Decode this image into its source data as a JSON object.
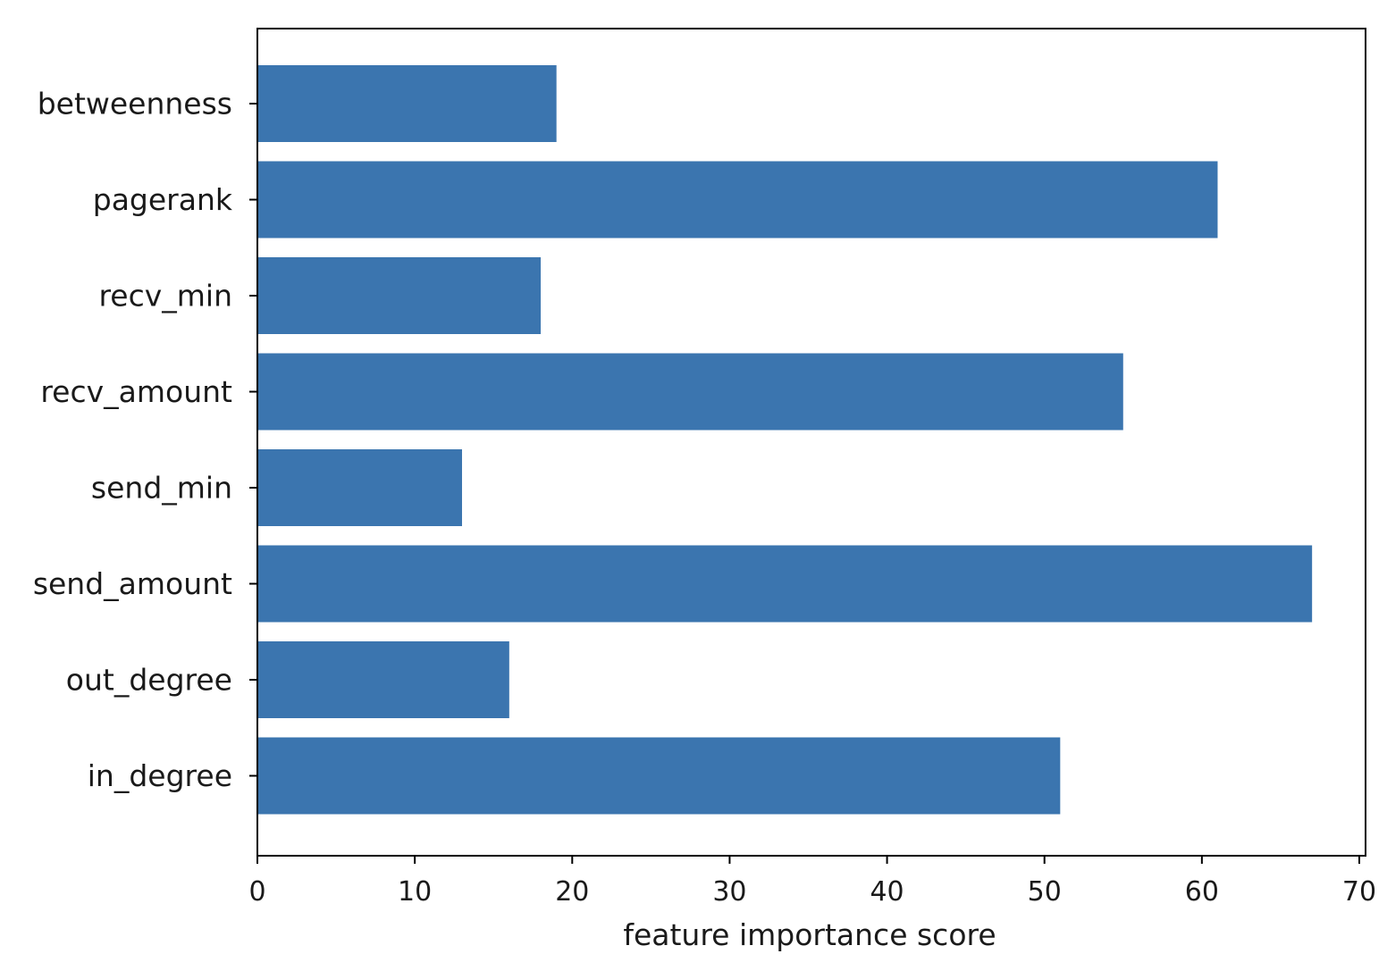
{
  "chart_data": {
    "type": "bar",
    "orientation": "horizontal",
    "title": "",
    "xlabel": "feature importance score",
    "ylabel": "",
    "categories": [
      "betweenness",
      "pagerank",
      "recv_min",
      "recv_amount",
      "send_min",
      "send_amount",
      "out_degree",
      "in_degree"
    ],
    "values": [
      19,
      61,
      18,
      55,
      13,
      67,
      16,
      51
    ],
    "xlim": [
      0,
      70
    ],
    "xticks": [
      0,
      10,
      20,
      30,
      40,
      50,
      60,
      70
    ],
    "xtick_labels": [
      "0",
      "10",
      "20",
      "30",
      "40",
      "50",
      "60",
      "70"
    ],
    "grid": false,
    "legend": "none",
    "bar_color": "#3b75af"
  }
}
